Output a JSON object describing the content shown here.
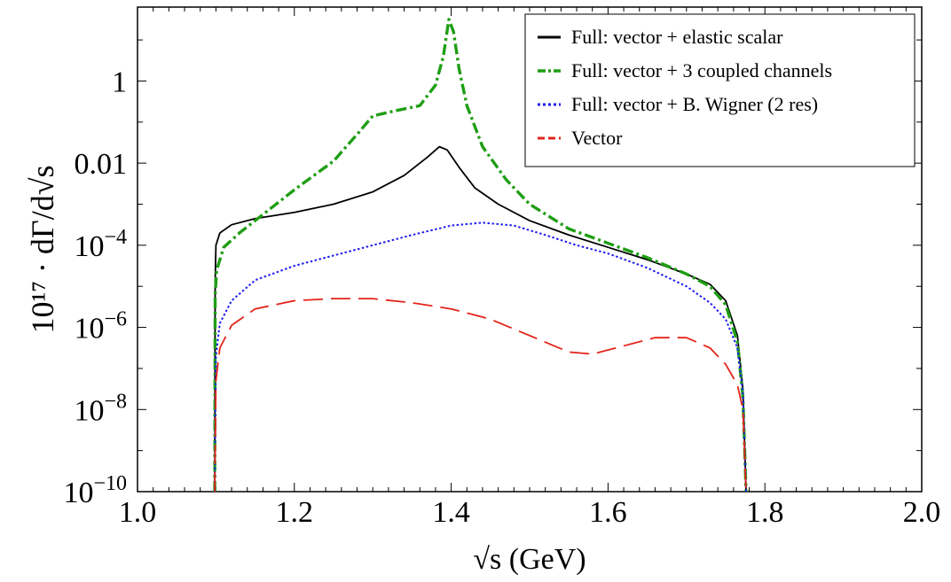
{
  "chart_data": {
    "type": "line",
    "xlabel": "√s (GeV)",
    "ylabel": "10¹⁷ · dΓ/d√s",
    "xlim": [
      1.0,
      2.0
    ],
    "ylim_log10": [
      -10,
      1.8
    ],
    "y_scale": "log",
    "x_ticks": [
      "1.0",
      "1.2",
      "1.4",
      "1.6",
      "1.8",
      "2.0"
    ],
    "y_ticks": [
      {
        "base": "10",
        "exp": "−10",
        "log": -10
      },
      {
        "base": "10",
        "exp": "−8",
        "log": -8
      },
      {
        "base": "10",
        "exp": "−6",
        "log": -6
      },
      {
        "base": "10",
        "exp": "−4",
        "log": -4
      },
      {
        "text": "0.01",
        "log": -2
      },
      {
        "text": "1",
        "log": 0
      }
    ],
    "legend_position": "top-right",
    "series": [
      {
        "name": "Full: vector + elastic scalar",
        "color": "#000000",
        "dash": "solid",
        "points": [
          [
            1.0985,
            -10
          ],
          [
            1.099,
            -4.9
          ],
          [
            1.1,
            -4.0
          ],
          [
            1.105,
            -3.7
          ],
          [
            1.12,
            -3.5
          ],
          [
            1.15,
            -3.35
          ],
          [
            1.2,
            -3.2
          ],
          [
            1.25,
            -3.0
          ],
          [
            1.3,
            -2.7
          ],
          [
            1.34,
            -2.3
          ],
          [
            1.37,
            -1.85
          ],
          [
            1.385,
            -1.6
          ],
          [
            1.395,
            -1.68
          ],
          [
            1.41,
            -2.1
          ],
          [
            1.43,
            -2.6
          ],
          [
            1.46,
            -3.0
          ],
          [
            1.5,
            -3.4
          ],
          [
            1.55,
            -3.75
          ],
          [
            1.6,
            -4.05
          ],
          [
            1.65,
            -4.35
          ],
          [
            1.7,
            -4.7
          ],
          [
            1.73,
            -4.95
          ],
          [
            1.75,
            -5.35
          ],
          [
            1.765,
            -6.2
          ],
          [
            1.772,
            -7.5
          ],
          [
            1.776,
            -10
          ]
        ]
      },
      {
        "name": "Full: vector + 3 coupled channels",
        "color": "#1f9e14",
        "dash": "dashdot",
        "points": [
          [
            1.0985,
            -10
          ],
          [
            1.099,
            -5.2
          ],
          [
            1.101,
            -4.6
          ],
          [
            1.11,
            -4.05
          ],
          [
            1.13,
            -3.7
          ],
          [
            1.15,
            -3.4
          ],
          [
            1.2,
            -2.65
          ],
          [
            1.25,
            -1.95
          ],
          [
            1.28,
            -1.3
          ],
          [
            1.3,
            -0.85
          ],
          [
            1.33,
            -0.72
          ],
          [
            1.36,
            -0.6
          ],
          [
            1.38,
            -0.1
          ],
          [
            1.39,
            0.6
          ],
          [
            1.397,
            1.5
          ],
          [
            1.403,
            1.2
          ],
          [
            1.41,
            0.3
          ],
          [
            1.42,
            -0.6
          ],
          [
            1.44,
            -1.6
          ],
          [
            1.47,
            -2.4
          ],
          [
            1.5,
            -3.0
          ],
          [
            1.55,
            -3.6
          ],
          [
            1.6,
            -3.95
          ],
          [
            1.65,
            -4.3
          ],
          [
            1.7,
            -4.7
          ],
          [
            1.73,
            -5.0
          ],
          [
            1.75,
            -5.45
          ],
          [
            1.765,
            -6.35
          ],
          [
            1.772,
            -7.7
          ],
          [
            1.776,
            -10
          ]
        ]
      },
      {
        "name": "Full: vector + B. Wigner (2 res)",
        "color": "#1c1cf0",
        "dash": "dotted",
        "points": [
          [
            1.0985,
            -10
          ],
          [
            1.1,
            -6.7
          ],
          [
            1.105,
            -5.9
          ],
          [
            1.12,
            -5.35
          ],
          [
            1.15,
            -4.85
          ],
          [
            1.2,
            -4.5
          ],
          [
            1.25,
            -4.25
          ],
          [
            1.3,
            -4.0
          ],
          [
            1.35,
            -3.75
          ],
          [
            1.4,
            -3.52
          ],
          [
            1.44,
            -3.45
          ],
          [
            1.48,
            -3.52
          ],
          [
            1.52,
            -3.75
          ],
          [
            1.56,
            -4.0
          ],
          [
            1.6,
            -4.2
          ],
          [
            1.65,
            -4.55
          ],
          [
            1.7,
            -5.0
          ],
          [
            1.73,
            -5.4
          ],
          [
            1.75,
            -5.8
          ],
          [
            1.765,
            -6.5
          ],
          [
            1.772,
            -7.6
          ],
          [
            1.776,
            -10
          ]
        ]
      },
      {
        "name": "Vector",
        "color": "#e3241b",
        "dash": "dashed",
        "points": [
          [
            1.0985,
            -10
          ],
          [
            1.1,
            -7.3
          ],
          [
            1.105,
            -6.5
          ],
          [
            1.12,
            -5.95
          ],
          [
            1.15,
            -5.55
          ],
          [
            1.2,
            -5.35
          ],
          [
            1.25,
            -5.3
          ],
          [
            1.3,
            -5.3
          ],
          [
            1.35,
            -5.4
          ],
          [
            1.4,
            -5.55
          ],
          [
            1.45,
            -5.8
          ],
          [
            1.5,
            -6.2
          ],
          [
            1.55,
            -6.6
          ],
          [
            1.58,
            -6.65
          ],
          [
            1.62,
            -6.45
          ],
          [
            1.66,
            -6.25
          ],
          [
            1.7,
            -6.25
          ],
          [
            1.73,
            -6.5
          ],
          [
            1.75,
            -6.9
          ],
          [
            1.765,
            -7.4
          ],
          [
            1.772,
            -8.0
          ],
          [
            1.776,
            -10
          ]
        ]
      }
    ]
  }
}
